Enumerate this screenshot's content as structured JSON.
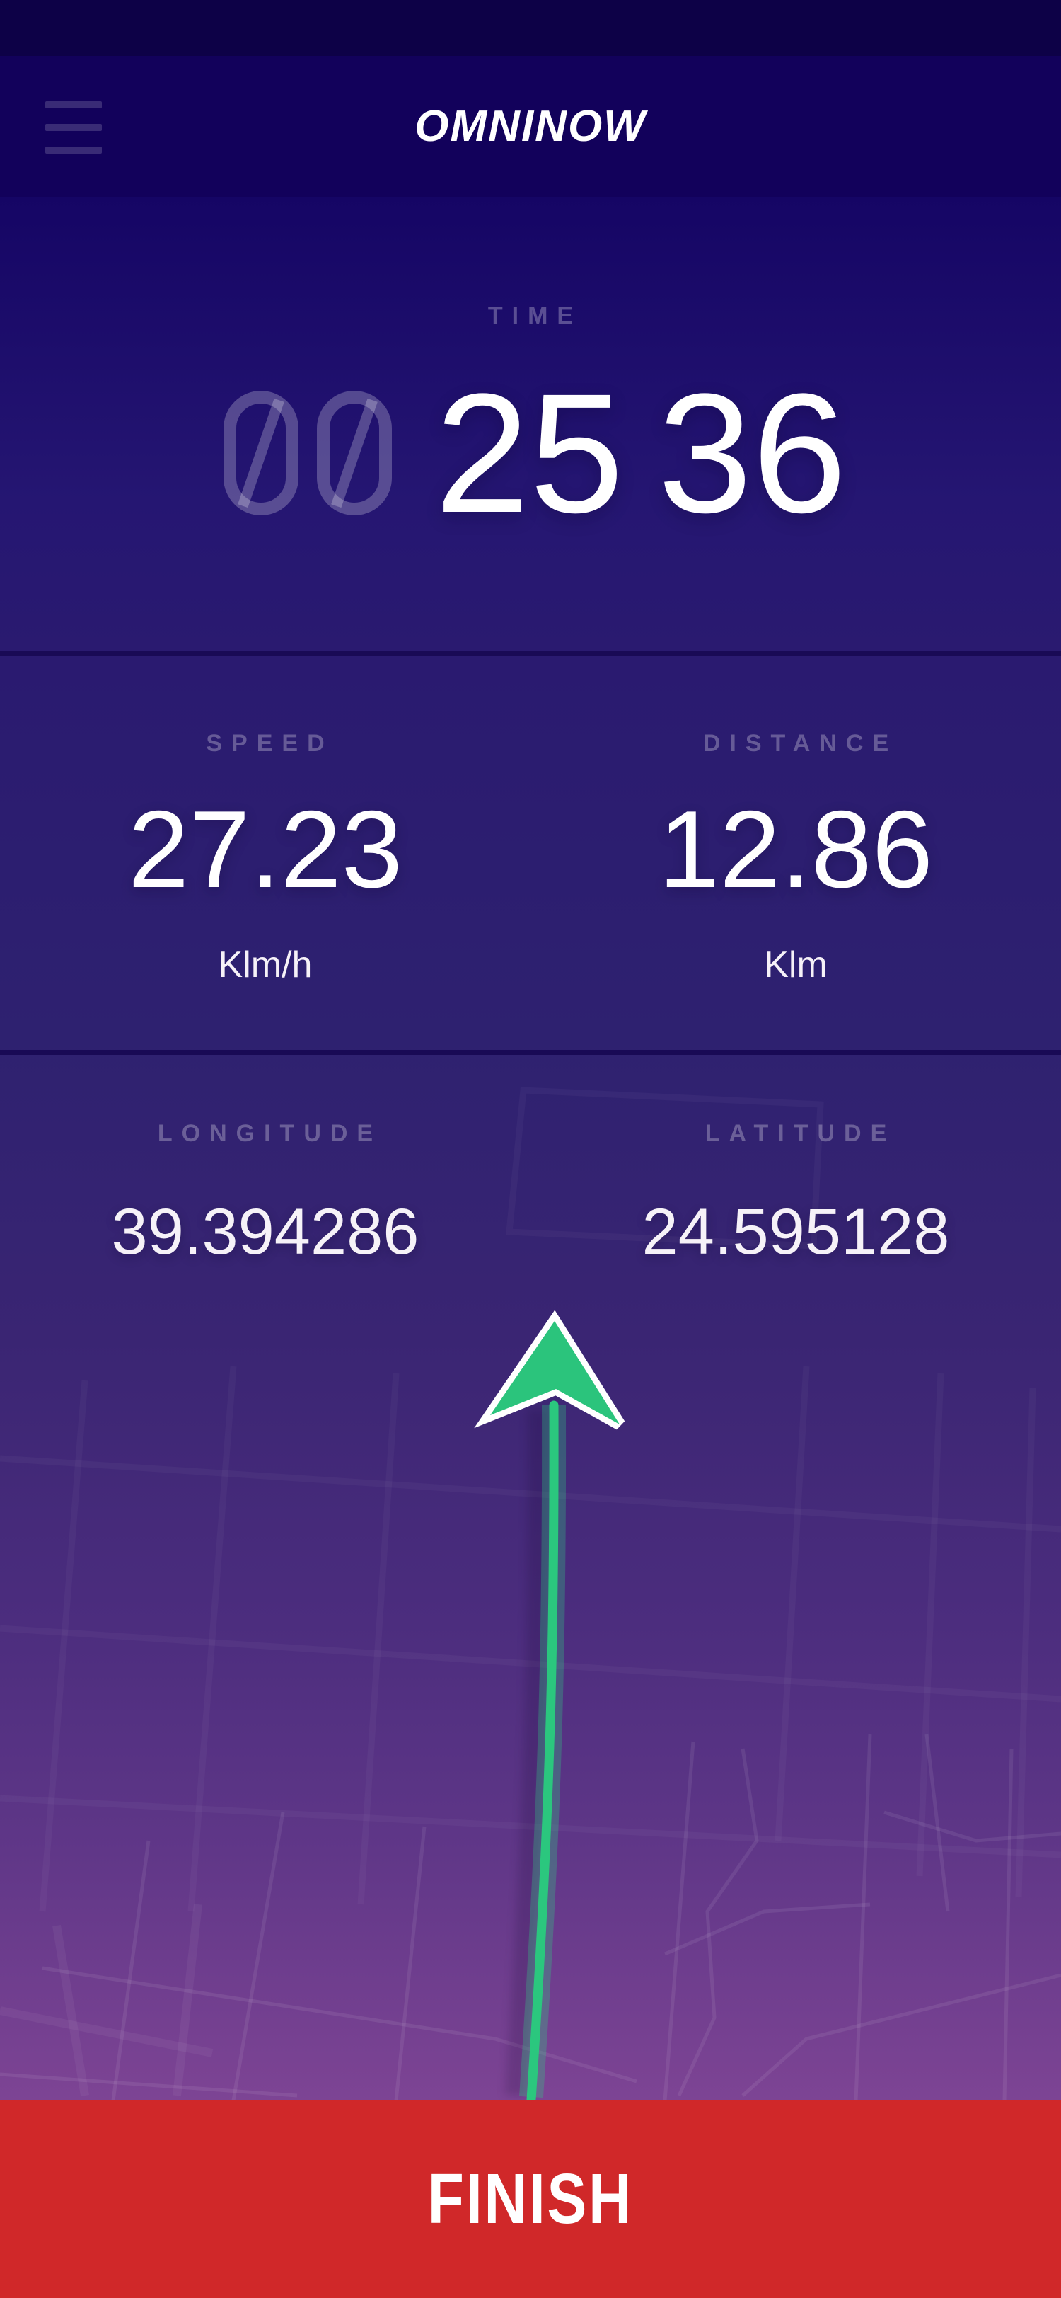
{
  "app": {
    "logo": "OMNINOW"
  },
  "header": {
    "menu_icon": "hamburger-icon"
  },
  "timer": {
    "label": "TIME",
    "hours": "00",
    "minutes": "25",
    "seconds": "36"
  },
  "metrics": {
    "speed": {
      "label": "SPEED",
      "value": "27.23",
      "unit": "Klm/h"
    },
    "distance": {
      "label": "DISTANCE",
      "value": "12.86",
      "unit": "Klm"
    }
  },
  "coordinates": {
    "longitude": {
      "label": "LONGITUDE",
      "value": "39.394286"
    },
    "latitude": {
      "label": "LATITUDE",
      "value": "24.595128"
    }
  },
  "map": {
    "arrow_icon": "navigation-arrow-icon",
    "route_color": "#2bc77e"
  },
  "finish": {
    "label": "FINISH"
  },
  "colors": {
    "accent_green": "#2bc77e",
    "finish_red": "#d02829",
    "status_bar": "#0d0147",
    "header_bg": "#12015b",
    "background_top": "#150565",
    "background_bottom": "#7d4494",
    "muted_label": "rgba(255,255,255,0.28)"
  }
}
